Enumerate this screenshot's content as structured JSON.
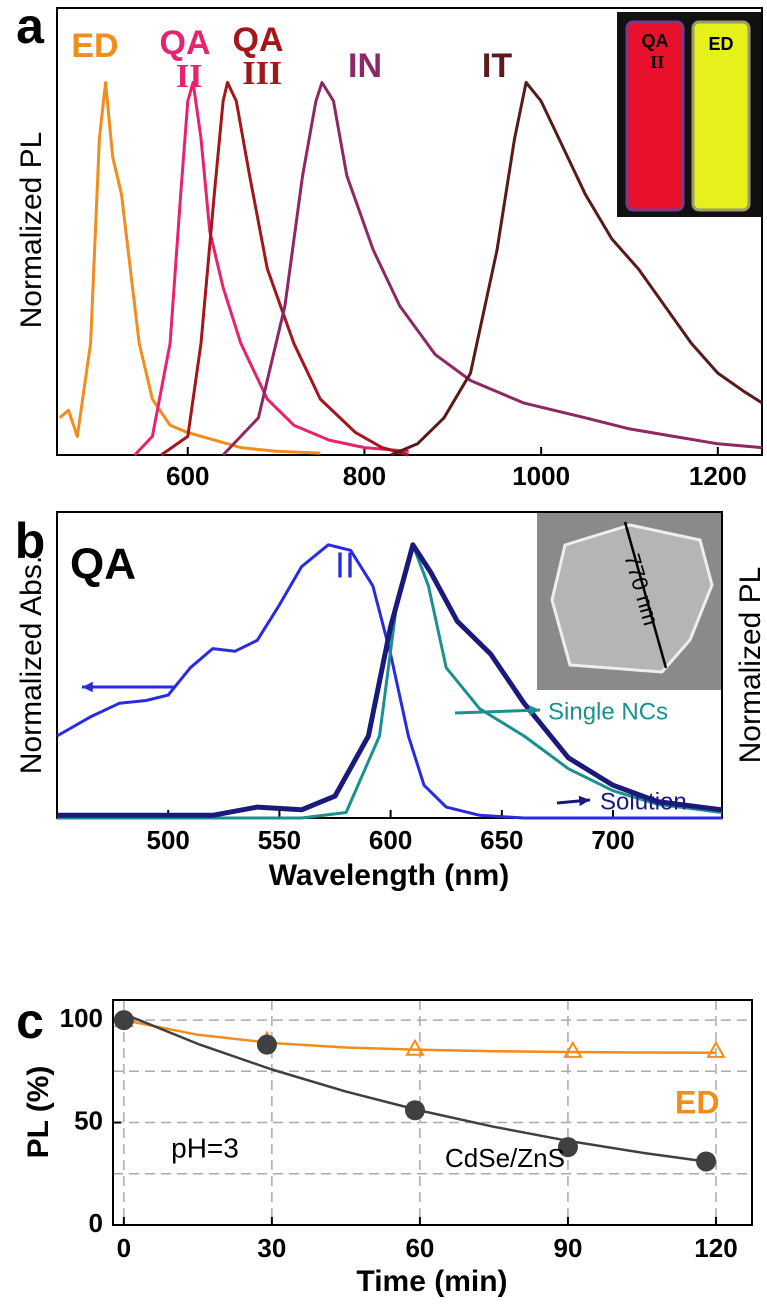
{
  "chart_data": [
    {
      "type": "line",
      "panel_label": "a",
      "ylabel": "Normalized PL",
      "xlim": [
        452,
        1250
      ],
      "ylim": [
        0,
        1.2
      ],
      "xticks": [
        600,
        800,
        1000,
        1200
      ],
      "series": [
        {
          "name": "ED",
          "color": "#f28c1c",
          "x": [
            455,
            465,
            475,
            490,
            500,
            507,
            515,
            525,
            535,
            545,
            560,
            580,
            600,
            630,
            660,
            700,
            750
          ],
          "values": [
            0.1,
            0.12,
            0.05,
            0.3,
            0.85,
            1.0,
            0.8,
            0.7,
            0.5,
            0.3,
            0.15,
            0.08,
            0.06,
            0.04,
            0.02,
            0.01,
            0.005
          ]
        },
        {
          "name": "QA II",
          "color": "#e8226e",
          "x": [
            540,
            560,
            580,
            592,
            600,
            606,
            615,
            625,
            640,
            660,
            690,
            720,
            760,
            800,
            850
          ],
          "values": [
            0,
            0.05,
            0.3,
            0.7,
            0.95,
            1.0,
            0.85,
            0.6,
            0.45,
            0.3,
            0.15,
            0.08,
            0.04,
            0.02,
            0.01
          ]
        },
        {
          "name": "QA III",
          "color": "#a3161c",
          "x": [
            570,
            600,
            615,
            630,
            640,
            645,
            655,
            670,
            690,
            720,
            750,
            790,
            820,
            850
          ],
          "values": [
            0,
            0.05,
            0.3,
            0.7,
            0.95,
            1.0,
            0.95,
            0.75,
            0.5,
            0.3,
            0.15,
            0.06,
            0.02,
            0
          ]
        },
        {
          "name": "IN",
          "color": "#8e2763",
          "x": [
            640,
            680,
            710,
            730,
            745,
            752,
            765,
            780,
            810,
            840,
            880,
            920,
            980,
            1050,
            1100,
            1150,
            1200,
            1250
          ],
          "values": [
            0,
            0.1,
            0.4,
            0.75,
            0.95,
            1.0,
            0.95,
            0.75,
            0.55,
            0.4,
            0.27,
            0.2,
            0.14,
            0.1,
            0.07,
            0.05,
            0.03,
            0.02
          ]
        },
        {
          "name": "IT",
          "color": "#5a1a1a",
          "x": [
            830,
            860,
            890,
            920,
            950,
            970,
            983,
            1000,
            1020,
            1050,
            1080,
            1110,
            1140,
            1170,
            1200,
            1230,
            1250
          ],
          "values": [
            0,
            0.03,
            0.1,
            0.22,
            0.55,
            0.85,
            1.0,
            0.95,
            0.85,
            0.7,
            0.58,
            0.5,
            0.4,
            0.3,
            0.22,
            0.17,
            0.14
          ]
        }
      ],
      "inset": {
        "labels": [
          "QA II",
          "ED"
        ]
      }
    },
    {
      "type": "line",
      "panel_label": "b",
      "title": "QA",
      "ylabel": "Normalized Abs.",
      "y2label": "Normalized PL",
      "xlabel": "Wavelength (nm)",
      "xlim": [
        450,
        749
      ],
      "ylim": [
        0,
        1.12
      ],
      "y2lim": [
        0,
        1.12
      ],
      "xticks": [
        500,
        550,
        600,
        650,
        700
      ],
      "series": [
        {
          "name": "II",
          "color": "#2a2ae0",
          "x": [
            450,
            465,
            478,
            490,
            500,
            510,
            520,
            530,
            540,
            550,
            560,
            572,
            582,
            592,
            600,
            608,
            615,
            625,
            640,
            660,
            749
          ],
          "values": [
            0.3,
            0.37,
            0.42,
            0.43,
            0.45,
            0.55,
            0.62,
            0.61,
            0.65,
            0.78,
            0.92,
            1.0,
            0.98,
            0.85,
            0.6,
            0.3,
            0.12,
            0.04,
            0.01,
            0,
            0
          ]
        },
        {
          "name": "Single NCs",
          "color": "#1a9090",
          "axis": "y2",
          "x": [
            450,
            560,
            580,
            595,
            603,
            610,
            617,
            625,
            640,
            660,
            680,
            700,
            720,
            749
          ],
          "values": [
            0,
            0,
            0.02,
            0.3,
            0.8,
            1.0,
            0.85,
            0.55,
            0.4,
            0.3,
            0.18,
            0.1,
            0.05,
            0.02
          ]
        },
        {
          "name": "Solution",
          "color": "#1a1a7a",
          "axis": "y2",
          "x": [
            450,
            520,
            540,
            560,
            575,
            590,
            600,
            610,
            618,
            630,
            645,
            660,
            680,
            700,
            720,
            749
          ],
          "values": [
            0.01,
            0.01,
            0.04,
            0.03,
            0.08,
            0.3,
            0.7,
            1.0,
            0.9,
            0.72,
            0.6,
            0.42,
            0.22,
            0.12,
            0.06,
            0.03
          ]
        }
      ],
      "inset": {
        "label": "770 nm"
      }
    },
    {
      "type": "scatter",
      "panel_label": "c",
      "ylabel": "PL (%)",
      "xlabel": "Time (min)",
      "annotation": "pH=3",
      "xlim": [
        -2.2,
        127.3
      ],
      "ylim": [
        0,
        109.8
      ],
      "xticks": [
        0,
        30,
        60,
        90,
        120
      ],
      "yticks": [
        0,
        50,
        100
      ],
      "minor_yticks": [
        25,
        75
      ],
      "grid": true,
      "series": [
        {
          "name": "ED",
          "color": "#f28c1c",
          "marker": "triangle",
          "x": [
            0,
            29,
            59,
            91,
            120
          ],
          "values": [
            100,
            90,
            86,
            85,
            85
          ],
          "fit": {
            "x": [
              0,
              15,
              30,
              45,
              60,
              75,
              90,
              105,
              120
            ],
            "values": [
              100,
              92.8,
              88.8,
              86.6,
              85.5,
              84.8,
              84.4,
              84.2,
              84.1
            ]
          }
        },
        {
          "name": "CdSe/ZnS",
          "color": "#404040",
          "marker": "circle",
          "x": [
            0,
            29,
            59,
            90,
            118
          ],
          "values": [
            100,
            88,
            56,
            38,
            31
          ],
          "fit": {
            "x": [
              0,
              15,
              30,
              45,
              60,
              75,
              90,
              105,
              120
            ],
            "values": [
              103,
              88.4,
              75.9,
              65.1,
              55.9,
              47.9,
              41.1,
              35.3,
              30.3
            ]
          }
        }
      ]
    }
  ]
}
